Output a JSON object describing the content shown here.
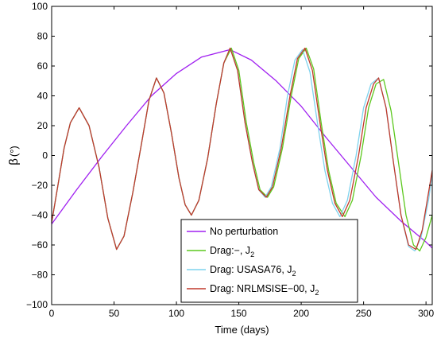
{
  "chart_data": {
    "type": "line",
    "xlabel": "Time (days)",
    "ylabel_main": "β",
    "ylabel_unit": "(°)",
    "xlim": [
      0,
      305
    ],
    "ylim": [
      -100,
      100
    ],
    "xticks": [
      0,
      50,
      100,
      150,
      200,
      250,
      300
    ],
    "yticks": [
      -100,
      -80,
      -60,
      -40,
      -20,
      0,
      20,
      40,
      60,
      80,
      100
    ],
    "grid": false,
    "legend_placement": "bottom-right",
    "series": [
      {
        "name": "No perturbation",
        "name_main": "No perturbation",
        "name_sub": "",
        "color": "#a020f0",
        "points": [
          [
            0,
            -46
          ],
          [
            20,
            -23
          ],
          [
            40,
            -1
          ],
          [
            60,
            20
          ],
          [
            80,
            40
          ],
          [
            100,
            55
          ],
          [
            120,
            66
          ],
          [
            143,
            71
          ],
          [
            160,
            64
          ],
          [
            180,
            50
          ],
          [
            200,
            33
          ],
          [
            220,
            12
          ],
          [
            240,
            -8
          ],
          [
            260,
            -28
          ],
          [
            280,
            -44
          ],
          [
            300,
            -58
          ],
          [
            305,
            -62
          ]
        ]
      },
      {
        "name": "Drag:−, J2",
        "name_main": "Drag:−, J",
        "name_sub": "2",
        "color": "#5cc81e",
        "points": [
          [
            0,
            -45
          ],
          [
            5,
            -20
          ],
          [
            10,
            5
          ],
          [
            15,
            22
          ],
          [
            22,
            32
          ],
          [
            30,
            20
          ],
          [
            38,
            -8
          ],
          [
            45,
            -42
          ],
          [
            52,
            -63
          ],
          [
            58,
            -54
          ],
          [
            65,
            -25
          ],
          [
            72,
            8
          ],
          [
            78,
            37
          ],
          [
            84,
            52
          ],
          [
            90,
            42
          ],
          [
            96,
            15
          ],
          [
            102,
            -15
          ],
          [
            107,
            -33
          ],
          [
            112,
            -40
          ],
          [
            118,
            -30
          ],
          [
            125,
            -2
          ],
          [
            132,
            35
          ],
          [
            138,
            62
          ],
          [
            144,
            72
          ],
          [
            150,
            57
          ],
          [
            156,
            22
          ],
          [
            162,
            -5
          ],
          [
            167,
            -23
          ],
          [
            173,
            -28
          ],
          [
            178,
            -21
          ],
          [
            185,
            5
          ],
          [
            192,
            40
          ],
          [
            198,
            65
          ],
          [
            204,
            72
          ],
          [
            210,
            58
          ],
          [
            216,
            22
          ],
          [
            222,
            -10
          ],
          [
            228,
            -32
          ],
          [
            235,
            -41
          ],
          [
            241,
            -30
          ],
          [
            248,
            0
          ],
          [
            254,
            32
          ],
          [
            260,
            48
          ],
          [
            266,
            51
          ],
          [
            272,
            30
          ],
          [
            278,
            -5
          ],
          [
            284,
            -40
          ],
          [
            290,
            -60
          ],
          [
            295,
            -64
          ],
          [
            300,
            -55
          ],
          [
            305,
            -40
          ]
        ]
      },
      {
        "name": "Drag: USASA76, J2",
        "name_main": "Drag: USASA76, J",
        "name_sub": "2",
        "color": "#7fd3ee",
        "points": [
          [
            0,
            -45
          ],
          [
            5,
            -20
          ],
          [
            10,
            5
          ],
          [
            15,
            22
          ],
          [
            22,
            32
          ],
          [
            30,
            20
          ],
          [
            38,
            -8
          ],
          [
            45,
            -42
          ],
          [
            52,
            -63
          ],
          [
            58,
            -54
          ],
          [
            65,
            -25
          ],
          [
            72,
            8
          ],
          [
            78,
            37
          ],
          [
            84,
            52
          ],
          [
            90,
            42
          ],
          [
            96,
            15
          ],
          [
            102,
            -15
          ],
          [
            107,
            -33
          ],
          [
            112,
            -40
          ],
          [
            118,
            -30
          ],
          [
            125,
            -2
          ],
          [
            132,
            35
          ],
          [
            138,
            62
          ],
          [
            143,
            72
          ],
          [
            149,
            57
          ],
          [
            155,
            22
          ],
          [
            161,
            -5
          ],
          [
            166,
            -23
          ],
          [
            171,
            -28
          ],
          [
            176,
            -21
          ],
          [
            183,
            5
          ],
          [
            189,
            40
          ],
          [
            195,
            64
          ],
          [
            201,
            71
          ],
          [
            207,
            56
          ],
          [
            213,
            22
          ],
          [
            219,
            -10
          ],
          [
            225,
            -32
          ],
          [
            231,
            -41
          ],
          [
            237,
            -30
          ],
          [
            244,
            0
          ],
          [
            250,
            32
          ],
          [
            256,
            48
          ],
          [
            262,
            52
          ],
          [
            268,
            32
          ],
          [
            274,
            -5
          ],
          [
            280,
            -40
          ],
          [
            286,
            -61
          ],
          [
            291,
            -64
          ],
          [
            296,
            -55
          ],
          [
            302,
            -30
          ],
          [
            305,
            -12
          ]
        ]
      },
      {
        "name": "Drag: NRLMSISE−00, J2",
        "name_main": "Drag: NRLMSISE−00, J",
        "name_sub": "2",
        "color": "#c0392b",
        "points": [
          [
            0,
            -45
          ],
          [
            5,
            -20
          ],
          [
            10,
            5
          ],
          [
            15,
            22
          ],
          [
            22,
            32
          ],
          [
            30,
            20
          ],
          [
            38,
            -8
          ],
          [
            45,
            -42
          ],
          [
            52,
            -63
          ],
          [
            58,
            -54
          ],
          [
            65,
            -25
          ],
          [
            72,
            8
          ],
          [
            78,
            37
          ],
          [
            84,
            52
          ],
          [
            90,
            42
          ],
          [
            96,
            15
          ],
          [
            102,
            -15
          ],
          [
            107,
            -33
          ],
          [
            112,
            -40
          ],
          [
            118,
            -30
          ],
          [
            125,
            -2
          ],
          [
            132,
            35
          ],
          [
            138,
            62
          ],
          [
            143,
            72
          ],
          [
            149,
            57
          ],
          [
            155,
            22
          ],
          [
            161,
            -5
          ],
          [
            166,
            -23
          ],
          [
            172,
            -28
          ],
          [
            177,
            -21
          ],
          [
            184,
            5
          ],
          [
            191,
            40
          ],
          [
            197,
            65
          ],
          [
            203,
            72
          ],
          [
            209,
            57
          ],
          [
            215,
            22
          ],
          [
            221,
            -10
          ],
          [
            227,
            -32
          ],
          [
            233,
            -41
          ],
          [
            239,
            -30
          ],
          [
            246,
            0
          ],
          [
            252,
            32
          ],
          [
            258,
            48
          ],
          [
            262,
            52
          ],
          [
            268,
            32
          ],
          [
            274,
            -5
          ],
          [
            280,
            -40
          ],
          [
            286,
            -60
          ],
          [
            292,
            -63
          ],
          [
            297,
            -50
          ],
          [
            302,
            -25
          ],
          [
            305,
            -10
          ]
        ]
      }
    ]
  }
}
